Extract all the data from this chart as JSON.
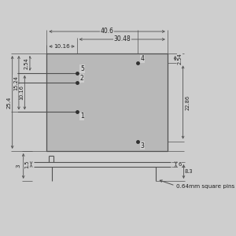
{
  "bg_color": "#cecece",
  "box_color": "#c0c0c0",
  "line_color": "#505050",
  "dim_color": "#505050",
  "text_color": "#202020",
  "pin_note": "0.64mm square pins",
  "fig_w": 3.0,
  "fig_h": 3.0,
  "dpi": 100,
  "dim_40_6": "40.6",
  "dim_30_48": "30.48",
  "dim_10_16": "10.16",
  "dim_25_4": "25.4",
  "dim_15_24": "15.24",
  "dim_10_16v": "10.16",
  "dim_2_54_top": "2.54",
  "dim_2_54_left": "2.54",
  "dim_22_86": "22.86",
  "dim_1_5": "1.5",
  "dim_3": "3",
  "dim_6": "6",
  "dim_8_3": "8.3"
}
